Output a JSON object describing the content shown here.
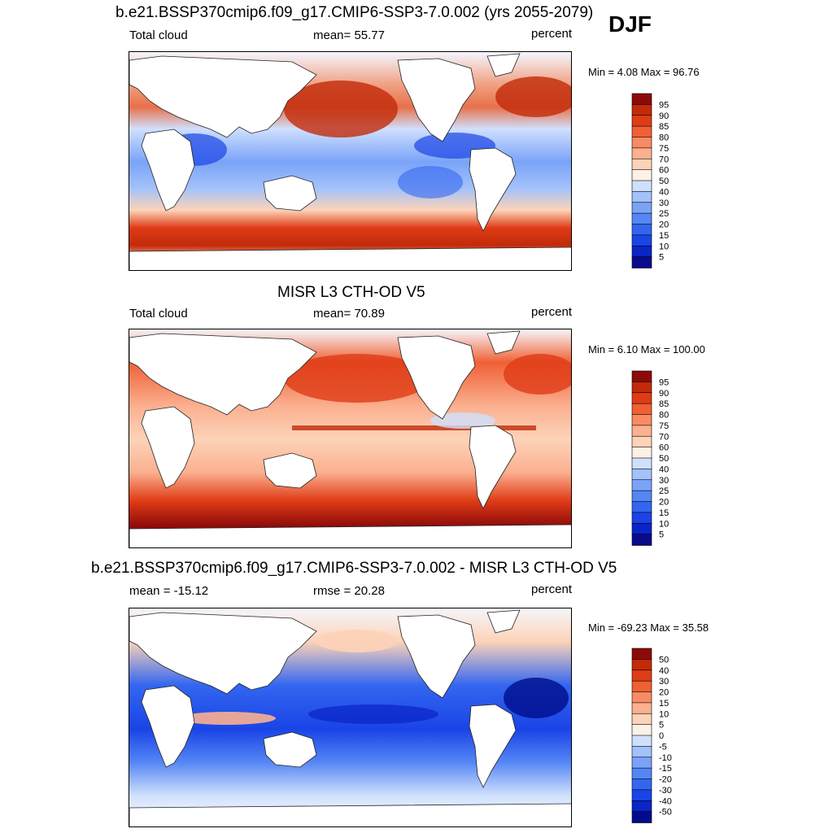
{
  "season": "DJF",
  "colors": {
    "cloud_scale": [
      "#0a0a8c",
      "#0a24c8",
      "#1a44e6",
      "#3366f0",
      "#5586f5",
      "#7aa3f8",
      "#a3c2fb",
      "#cfe0fd",
      "#fdf1e6",
      "#fcd3b8",
      "#fbb090",
      "#f98b62",
      "#f06035",
      "#df3c16",
      "#c22a0a",
      "#8c0a0a"
    ],
    "diff_scale": [
      "#000c8c",
      "#0a24c8",
      "#1a44e6",
      "#3366f0",
      "#5586f5",
      "#7aa3f8",
      "#a3c2fb",
      "#cfe0fd",
      "#fdf1e6",
      "#fcd3b8",
      "#fbb090",
      "#f98b62",
      "#f06035",
      "#df3c16",
      "#c22a0a",
      "#8c0a0a"
    ]
  },
  "panels": [
    {
      "title": "b.e21.BSSP370cmip6.f09_g17.CMIP6-SSP3-7.0.002 (yrs 2055-2079)",
      "left_label": "Total cloud",
      "center_label": "mean=  55.77",
      "right_label": "percent",
      "minmax": "Min =   4.08 Max =  96.76",
      "colorbar_labels": [
        "95",
        "90",
        "85",
        "80",
        "75",
        "70",
        "60",
        "50",
        "40",
        "30",
        "25",
        "20",
        "15",
        "10",
        "5"
      ]
    },
    {
      "title": "MISR L3 CTH-OD V5",
      "left_label": "Total cloud",
      "center_label": "mean=  70.89",
      "right_label": "percent",
      "minmax": "Min =   6.10 Max = 100.00",
      "colorbar_labels": [
        "95",
        "90",
        "85",
        "80",
        "75",
        "70",
        "60",
        "50",
        "40",
        "30",
        "25",
        "20",
        "15",
        "10",
        "5"
      ]
    },
    {
      "title": "b.e21.BSSP370cmip6.f09_g17.CMIP6-SSP3-7.0.002 - MISR L3 CTH-OD V5",
      "left_label": "mean = -15.12",
      "center_label": "rmse =  20.28",
      "right_label": "percent",
      "minmax": "Min = -69.23 Max =  35.58",
      "colorbar_labels": [
        "50",
        "40",
        "30",
        "20",
        "15",
        "10",
        "5",
        "0",
        "-5",
        "-10",
        "-15",
        "-20",
        "-30",
        "-40",
        "-50"
      ]
    }
  ]
}
